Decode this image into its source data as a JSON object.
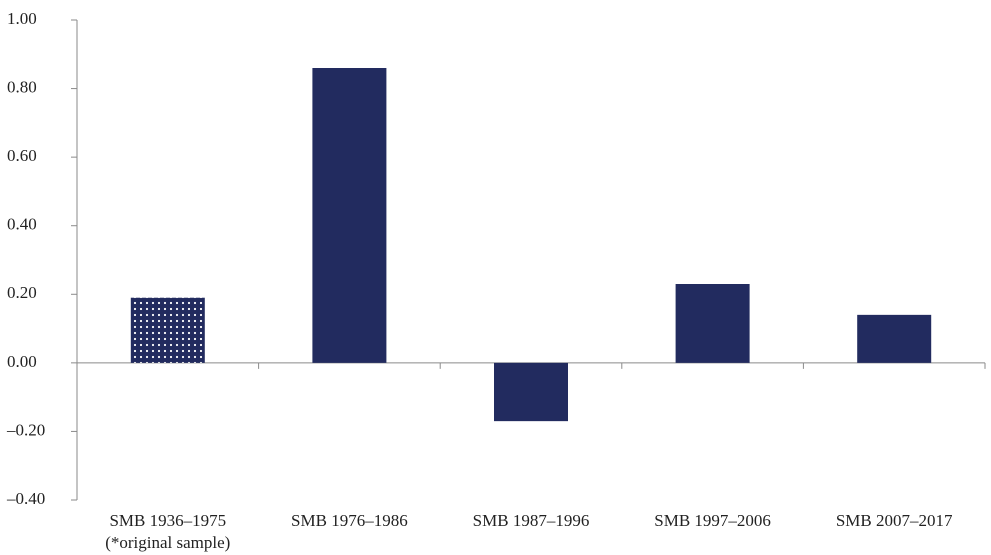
{
  "chart_data": {
    "type": "bar",
    "categories": [
      "SMB 1936–1975\n(*original sample)",
      "SMB 1976–1986",
      "SMB 1987–1996",
      "SMB 1997–2006",
      "SMB 2007–2017"
    ],
    "values": [
      0.19,
      0.86,
      -0.17,
      0.23,
      0.14
    ],
    "color": "#222b5f",
    "styles": [
      "dotted",
      "solid",
      "solid",
      "solid",
      "solid"
    ],
    "ylim": [
      -0.4,
      1.0
    ],
    "yticks": [
      {
        "value": -0.4,
        "label": "–0.40"
      },
      {
        "value": -0.2,
        "label": "–0.20"
      },
      {
        "value": 0,
        "label": "0.00"
      },
      {
        "value": 0.2,
        "label": "0.20"
      },
      {
        "value": 0.4,
        "label": "0.40"
      },
      {
        "value": 0.6,
        "label": "0.60"
      },
      {
        "value": 0.8,
        "label": "0.80"
      },
      {
        "value": 1.0,
        "label": "1.00"
      }
    ],
    "grid": false
  }
}
